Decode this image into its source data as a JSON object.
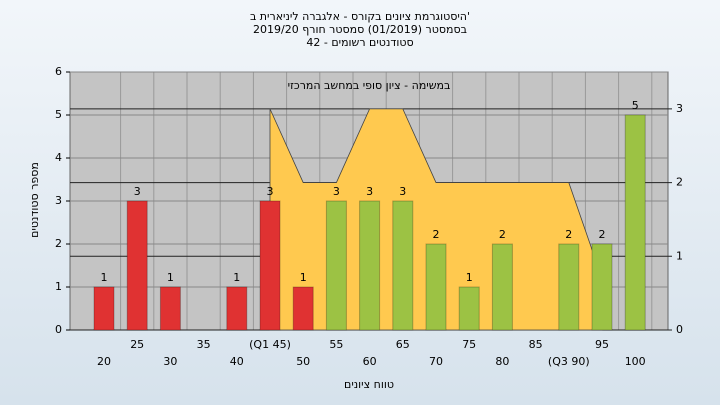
{
  "chart_data": {
    "type": "bar",
    "title": "היסטוגרמת ציונים בקורס - אלגברה ליניארית ב'",
    "subtitle": "בסמסטר (01/2019) סמסטר חורף 2019/20",
    "subtitle2": "סטודנטים רשומים - 42",
    "annotation": "במשימה - ציון סופי במחשב המרכזי",
    "x_label": "טווח ציונים",
    "y_label": "מספר סטודנטים",
    "categories": [
      "20",
      "25",
      "30",
      "35",
      "40",
      "(Q1 45)",
      "50",
      "55",
      "60",
      "65",
      "70",
      "75",
      "80",
      "85",
      "(Q3 90)",
      "95",
      "100"
    ],
    "values": [
      1,
      3,
      1,
      0,
      1,
      3,
      1,
      3,
      3,
      3,
      2,
      1,
      2,
      0,
      2,
      2,
      5
    ],
    "colors": [
      "#e03232",
      "#e03232",
      "#e03232",
      "#e03232",
      "#e03232",
      "#e03232",
      "#e03232",
      "#9cc244",
      "#9cc244",
      "#9cc244",
      "#9cc244",
      "#9cc244",
      "#9cc244",
      "#9cc244",
      "#9cc244",
      "#9cc244",
      "#9cc244"
    ],
    "area": {
      "color": "#ffc94f",
      "axis": "y2",
      "values": [
        null,
        null,
        null,
        null,
        null,
        3,
        2,
        2,
        3,
        3,
        2,
        2,
        2,
        2,
        2,
        0.7,
        null
      ]
    },
    "ylim": [
      0,
      6
    ],
    "yticks": [
      0,
      1,
      2,
      3,
      4,
      5,
      6
    ],
    "y2lim": [
      0,
      3.5
    ],
    "y2ticks": [
      0,
      1,
      2,
      3
    ],
    "grid": true
  }
}
